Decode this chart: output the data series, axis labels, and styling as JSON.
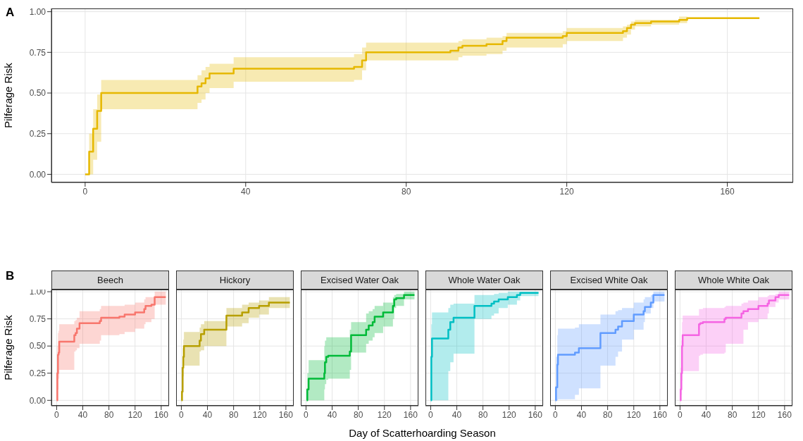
{
  "chart_data": [
    {
      "type": "step",
      "ylabel": "Pilferage Risk",
      "annotations": [
        "A"
      ],
      "grid": true,
      "xlim": [
        -8.4,
        176.4
      ],
      "xticks": [
        0,
        40,
        80,
        120,
        160
      ],
      "ylim": [
        -0.05,
        1.02
      ],
      "yticks": [
        {
          "value": 0,
          "label": "0.00"
        },
        {
          "value": 0.25,
          "label": "0.25"
        },
        {
          "value": 0.5,
          "label": "0.50"
        },
        {
          "value": 0.75,
          "label": "0.75"
        },
        {
          "value": 1,
          "label": "1.00"
        }
      ],
      "series": [
        {
          "color": "#e6b800",
          "x": [
            0,
            1,
            2,
            3,
            4,
            28,
            29,
            30,
            31,
            37,
            67,
            69,
            70,
            91,
            93,
            94,
            100,
            104,
            105,
            119,
            120,
            134,
            135,
            136,
            137,
            141,
            148,
            150,
            168
          ],
          "values": [
            0,
            0.14,
            0.28,
            0.39,
            0.5,
            0.54,
            0.56,
            0.59,
            0.62,
            0.65,
            0.66,
            0.7,
            0.75,
            0.76,
            0.78,
            0.79,
            0.8,
            0.82,
            0.84,
            0.85,
            0.87,
            0.88,
            0.9,
            0.92,
            0.93,
            0.94,
            0.95,
            0.96,
            0.96
          ],
          "lower": [
            0,
            0,
            0.09,
            0.2,
            0.4,
            0.44,
            0.46,
            0.5,
            0.53,
            0.57,
            0.58,
            0.64,
            0.7,
            0.7,
            0.72,
            0.73,
            0.74,
            0.76,
            0.78,
            0.8,
            0.82,
            0.84,
            0.86,
            0.89,
            0.91,
            0.92,
            0.93,
            0.96,
            0.96
          ],
          "upper": [
            0,
            0.25,
            0.4,
            0.49,
            0.58,
            0.61,
            0.64,
            0.66,
            0.68,
            0.72,
            0.74,
            0.78,
            0.81,
            0.81,
            0.82,
            0.83,
            0.84,
            0.85,
            0.87,
            0.88,
            0.9,
            0.91,
            0.92,
            0.94,
            0.95,
            0.95,
            0.97,
            0.96,
            0.96
          ]
        }
      ]
    },
    {
      "type": "step",
      "title": "Beech",
      "ylabel": "Pilferage Risk",
      "annotations": [
        "B"
      ],
      "grid": true,
      "xlim": [
        -8,
        172
      ],
      "xticks": [
        0,
        40,
        80,
        120,
        160
      ],
      "ylim": [
        -0.05,
        1.02
      ],
      "yticks": [
        {
          "value": 0,
          "label": "0.00"
        },
        {
          "value": 0.25,
          "label": "0.25"
        },
        {
          "value": 0.5,
          "label": "0.50"
        },
        {
          "value": 0.75,
          "label": "0.75"
        },
        {
          "value": 1,
          "label": "1.00"
        }
      ],
      "series": [
        {
          "color": "#f8766d",
          "x": [
            0,
            1,
            2,
            3,
            4,
            27,
            29,
            31,
            35,
            66,
            68,
            96,
            104,
            120,
            134,
            136,
            145,
            150,
            167
          ],
          "values": [
            0,
            0.25,
            0.42,
            0.44,
            0.54,
            0.6,
            0.62,
            0.66,
            0.71,
            0.73,
            0.76,
            0.77,
            0.79,
            0.81,
            0.84,
            0.87,
            0.88,
            0.95,
            0.95
          ],
          "lower": [
            0,
            0,
            0.1,
            0.2,
            0.28,
            0.45,
            0.46,
            0.48,
            0.52,
            0.55,
            0.6,
            0.61,
            0.63,
            0.66,
            0.7,
            0.72,
            0.75,
            0.88,
            0.88
          ],
          "upper": [
            0,
            0.5,
            0.62,
            0.64,
            0.7,
            0.73,
            0.74,
            0.76,
            0.82,
            0.84,
            0.87,
            0.87,
            0.88,
            0.9,
            0.93,
            0.95,
            0.95,
            1.0,
            1.0
          ]
        }
      ]
    },
    {
      "type": "step",
      "title": "Hickory",
      "tick_labels": "x",
      "grid": true,
      "xlim": [
        -8,
        172
      ],
      "xticks": [
        0,
        40,
        80,
        120,
        160
      ],
      "ylim": [
        -0.05,
        1.02
      ],
      "yticks": [
        0,
        0.25,
        0.5,
        0.75,
        1
      ],
      "series": [
        {
          "color": "#b79f00",
          "x": [
            0,
            1,
            2,
            3,
            4,
            28,
            30,
            35,
            69,
            93,
            103,
            119,
            134,
            166
          ],
          "values": [
            0,
            0.08,
            0.3,
            0.4,
            0.5,
            0.55,
            0.61,
            0.65,
            0.78,
            0.81,
            0.85,
            0.87,
            0.9,
            0.9
          ],
          "lower": [
            0,
            0,
            0.12,
            0.22,
            0.32,
            0.45,
            0.46,
            0.5,
            0.68,
            0.71,
            0.76,
            0.79,
            0.85,
            0.85
          ],
          "upper": [
            0,
            0.25,
            0.48,
            0.56,
            0.63,
            0.67,
            0.7,
            0.73,
            0.85,
            0.88,
            0.9,
            0.92,
            0.95,
            0.95
          ]
        }
      ]
    },
    {
      "type": "step",
      "title": "Excised Water Oak",
      "tick_labels": "x",
      "grid": true,
      "xlim": [
        -8,
        172
      ],
      "xticks": [
        0,
        40,
        80,
        120,
        160
      ],
      "ylim": [
        -0.05,
        1.02
      ],
      "yticks": [
        0,
        0.25,
        0.5,
        0.75,
        1
      ],
      "series": [
        {
          "color": "#00ba38",
          "x": [
            1,
            2,
            4,
            28,
            29,
            31,
            34,
            67,
            69,
            92,
            96,
            102,
            105,
            118,
            133,
            135,
            138,
            150,
            166
          ],
          "values": [
            0,
            0.1,
            0.2,
            0.25,
            0.35,
            0.4,
            0.41,
            0.45,
            0.6,
            0.65,
            0.69,
            0.72,
            0.77,
            0.81,
            0.87,
            0.93,
            0.94,
            0.97,
            0.97
          ],
          "lower": [
            0,
            0,
            0,
            0.1,
            0.15,
            0.19,
            0.2,
            0.28,
            0.44,
            0.52,
            0.55,
            0.58,
            0.62,
            0.68,
            0.75,
            0.85,
            0.87,
            0.93,
            0.93
          ],
          "upper": [
            0,
            0.25,
            0.37,
            0.5,
            0.55,
            0.58,
            0.58,
            0.65,
            0.72,
            0.8,
            0.82,
            0.84,
            0.87,
            0.9,
            0.95,
            0.97,
            0.98,
            1.0,
            1.0
          ]
        }
      ]
    },
    {
      "type": "step",
      "title": "Whole Water Oak",
      "xlabel": "Day of Scatterhoarding Season",
      "tick_labels": "x",
      "grid": true,
      "xlim": [
        -8,
        172
      ],
      "xticks": [
        0,
        40,
        80,
        120,
        160
      ],
      "ylim": [
        -0.05,
        1.02
      ],
      "yticks": [
        0,
        0.25,
        0.5,
        0.75,
        1
      ],
      "series": [
        {
          "color": "#00bfc4",
          "x": [
            0,
            1,
            2,
            27,
            30,
            35,
            67,
            93,
            97,
            104,
            118,
            132,
            137,
            165
          ],
          "values": [
            0,
            0.4,
            0.57,
            0.65,
            0.72,
            0.76,
            0.87,
            0.89,
            0.91,
            0.93,
            0.95,
            0.97,
            0.99,
            0.99
          ],
          "lower": [
            0,
            0,
            0,
            0.27,
            0.35,
            0.43,
            0.75,
            0.78,
            0.8,
            0.85,
            0.88,
            0.92,
            0.96,
            0.96
          ],
          "upper": [
            0,
            0.7,
            0.81,
            0.85,
            0.88,
            0.89,
            0.97,
            0.97,
            0.98,
            0.99,
            1.0,
            1.0,
            1.0,
            1.0
          ]
        }
      ]
    },
    {
      "type": "step",
      "title": "Excised White Oak",
      "tick_labels": "x",
      "grid": true,
      "xlim": [
        -8,
        172
      ],
      "xticks": [
        0,
        40,
        80,
        120,
        160
      ],
      "ylim": [
        -0.05,
        1.02
      ],
      "yticks": [
        0,
        0.25,
        0.5,
        0.75,
        1
      ],
      "series": [
        {
          "color": "#619cff",
          "x": [
            0,
            1,
            3,
            4,
            30,
            36,
            69,
            92,
            96,
            102,
            120,
            135,
            137,
            146,
            150,
            167
          ],
          "values": [
            0,
            0.12,
            0.33,
            0.42,
            0.44,
            0.48,
            0.62,
            0.65,
            0.68,
            0.73,
            0.79,
            0.82,
            0.86,
            0.9,
            0.97,
            0.97
          ],
          "lower": [
            0,
            0,
            0,
            0.01,
            0.05,
            0.11,
            0.32,
            0.4,
            0.45,
            0.56,
            0.65,
            0.72,
            0.8,
            0.85,
            0.91,
            0.91
          ],
          "upper": [
            0,
            0.4,
            0.6,
            0.66,
            0.67,
            0.7,
            0.79,
            0.82,
            0.83,
            0.85,
            0.9,
            0.93,
            0.95,
            0.97,
            1.0,
            1.0
          ]
        }
      ]
    },
    {
      "type": "step",
      "title": "Whole White Oak",
      "tick_labels": "x",
      "grid": true,
      "xlim": [
        -8,
        172
      ],
      "xticks": [
        0,
        40,
        80,
        120,
        160
      ],
      "ylim": [
        -0.05,
        1.02
      ],
      "yticks": [
        0,
        0.25,
        0.5,
        0.75,
        1
      ],
      "series": [
        {
          "color": "#f564e3",
          "x": [
            0,
            1,
            2,
            3,
            4,
            29,
            31,
            35,
            68,
            70,
            94,
            97,
            104,
            120,
            134,
            136,
            146,
            151,
            167
          ],
          "values": [
            0,
            0.1,
            0.25,
            0.5,
            0.6,
            0.7,
            0.71,
            0.72,
            0.75,
            0.76,
            0.8,
            0.82,
            0.84,
            0.87,
            0.89,
            0.92,
            0.95,
            0.97,
            0.97
          ],
          "lower": [
            0,
            0,
            0.05,
            0.18,
            0.27,
            0.41,
            0.42,
            0.43,
            0.44,
            0.52,
            0.52,
            0.65,
            0.72,
            0.75,
            0.8,
            0.86,
            0.9,
            0.93,
            0.93
          ],
          "upper": [
            0,
            0.3,
            0.55,
            0.72,
            0.78,
            0.84,
            0.84,
            0.85,
            0.86,
            0.87,
            0.89,
            0.9,
            0.92,
            0.95,
            0.96,
            0.97,
            0.98,
            1.0,
            1.0
          ]
        }
      ]
    }
  ]
}
